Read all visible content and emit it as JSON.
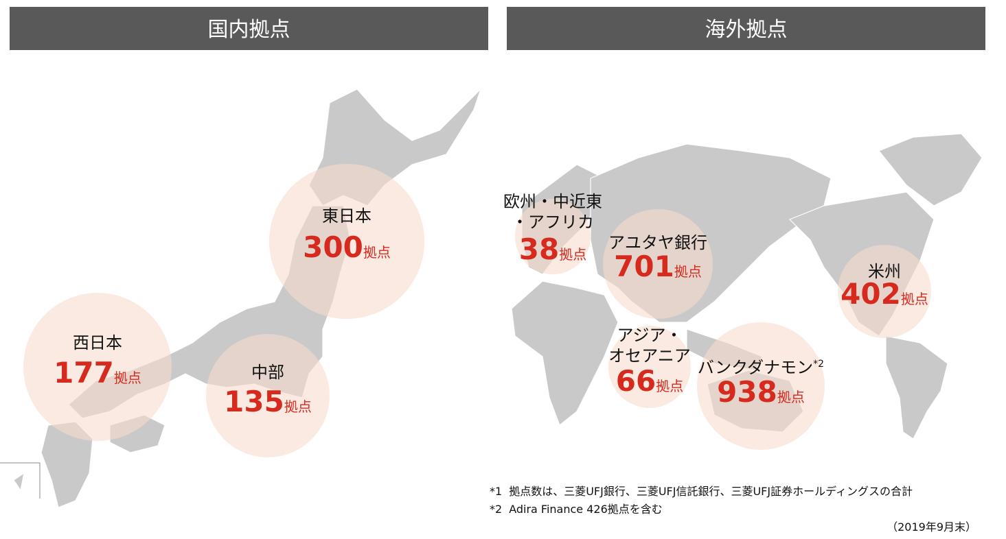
{
  "panels": [
    {
      "title": "国内拠点",
      "regions": [
        {
          "name": [
            "東日本"
          ],
          "count": "300",
          "unit": "拠点"
        },
        {
          "name": [
            "西日本"
          ],
          "count": "177",
          "unit": "拠点"
        },
        {
          "name": [
            "中部"
          ],
          "count": "135",
          "unit": "拠点"
        }
      ]
    },
    {
      "title": "海外拠点",
      "regions": [
        {
          "name": [
            "欧州・中近東",
            "・アフリカ"
          ],
          "count": "38",
          "unit": "拠点"
        },
        {
          "name": [
            "アユタヤ銀行"
          ],
          "count": "701",
          "unit": "拠点"
        },
        {
          "name": [
            "米州"
          ],
          "count": "402",
          "unit": "拠点"
        },
        {
          "name": [
            "アジア・",
            "オセアニア"
          ],
          "count": "66",
          "unit": "拠点"
        },
        {
          "name": [
            "バンクダナモン"
          ],
          "note_mark": "*2",
          "count": "938",
          "unit": "拠点"
        }
      ]
    }
  ],
  "notes": [
    {
      "mark": "*1",
      "text": "拠点数は、三菱UFJ銀行、三菱UFJ信託銀行、三菱UFJ証券ホールディングスの合計"
    },
    {
      "mark": "*2",
      "text": "Adira Finance 426拠点を含む"
    }
  ],
  "date": "（2019年9月末）"
}
